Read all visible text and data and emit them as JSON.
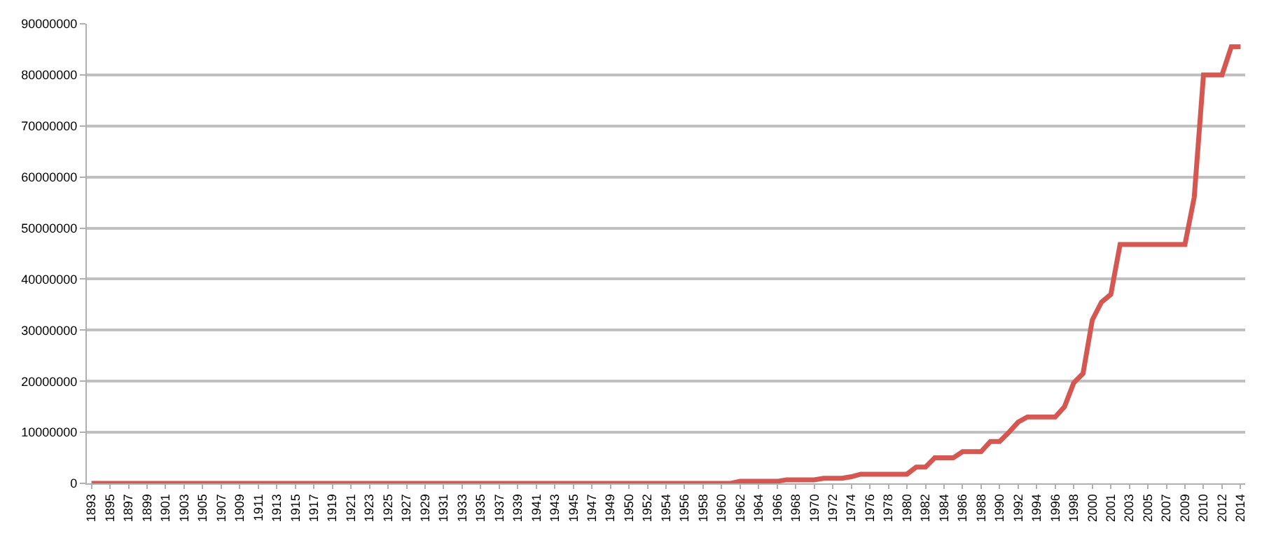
{
  "chart_data": {
    "type": "line",
    "categories": [
      "1893",
      null,
      "1895",
      null,
      "1897",
      null,
      "1899",
      null,
      "1901",
      null,
      "1903",
      null,
      "1905",
      null,
      "1907",
      null,
      "1909",
      null,
      "1911",
      null,
      "1913",
      null,
      "1915",
      null,
      "1917",
      null,
      "1919",
      null,
      "1921",
      null,
      "1923",
      null,
      "1925",
      null,
      "1927",
      null,
      "1929",
      null,
      "1931",
      null,
      "1933",
      null,
      "1935",
      null,
      "1937",
      null,
      "1939",
      null,
      "1941",
      null,
      "1943",
      null,
      "1945",
      null,
      "1947",
      null,
      "1949",
      null,
      "1950",
      null,
      "1952",
      null,
      "1954",
      null,
      "1956",
      null,
      "1958",
      null,
      "1960",
      null,
      "1962",
      null,
      "1964",
      null,
      "1966",
      null,
      "1968",
      null,
      "1970",
      null,
      "1972",
      null,
      "1974",
      null,
      "1976",
      null,
      "1978",
      null,
      "1980",
      null,
      "1982",
      null,
      "1984",
      null,
      "1986",
      null,
      "1988",
      null,
      "1990",
      null,
      "1992",
      null,
      "1994",
      null,
      "1996",
      null,
      "1998",
      null,
      "2000",
      null,
      "2001",
      null,
      "2003",
      null,
      "2005",
      null,
      "2007",
      null,
      "2009",
      null,
      "2010",
      null,
      "2012",
      null,
      "2014"
    ],
    "series": [
      {
        "color": "#d55752",
        "values": [
          0,
          0,
          0,
          0,
          0,
          0,
          0,
          0,
          0,
          0,
          0,
          0,
          0,
          0,
          0,
          0,
          0,
          0,
          0,
          0,
          0,
          0,
          0,
          0,
          0,
          0,
          0,
          0,
          0,
          0,
          0,
          0,
          0,
          0,
          0,
          0,
          0,
          0,
          0,
          0,
          0,
          0,
          0,
          0,
          0,
          0,
          0,
          0,
          0,
          0,
          0,
          0,
          0,
          0,
          0,
          0,
          0,
          0,
          0,
          0,
          0,
          0,
          0,
          0,
          0,
          0,
          0,
          0,
          0,
          0,
          400000,
          400000,
          400000,
          400000,
          400000,
          700000,
          700000,
          700000,
          700000,
          1000000,
          1000000,
          1000000,
          1300000,
          1800000,
          1800000,
          1800000,
          1800000,
          1800000,
          1800000,
          3200000,
          3200000,
          5000000,
          5000000,
          5000000,
          6200000,
          6200000,
          6200000,
          8200000,
          8200000,
          10000000,
          12000000,
          13000000,
          13000000,
          13000000,
          13000000,
          15000000,
          19700000,
          21500000,
          32000000,
          35500000,
          37000000,
          46800000,
          46800000,
          46800000,
          46800000,
          46800000,
          46800000,
          46800000,
          46800000,
          56000000,
          80000000,
          80000000,
          80000000,
          85500000,
          85500000
        ]
      }
    ],
    "ylim": [
      0,
      90000000
    ],
    "yticks": [
      0,
      10000000,
      20000000,
      30000000,
      40000000,
      50000000,
      60000000,
      70000000,
      80000000,
      90000000
    ],
    "grid": "y",
    "legend": false,
    "marker": "none",
    "line_style": "solid"
  }
}
